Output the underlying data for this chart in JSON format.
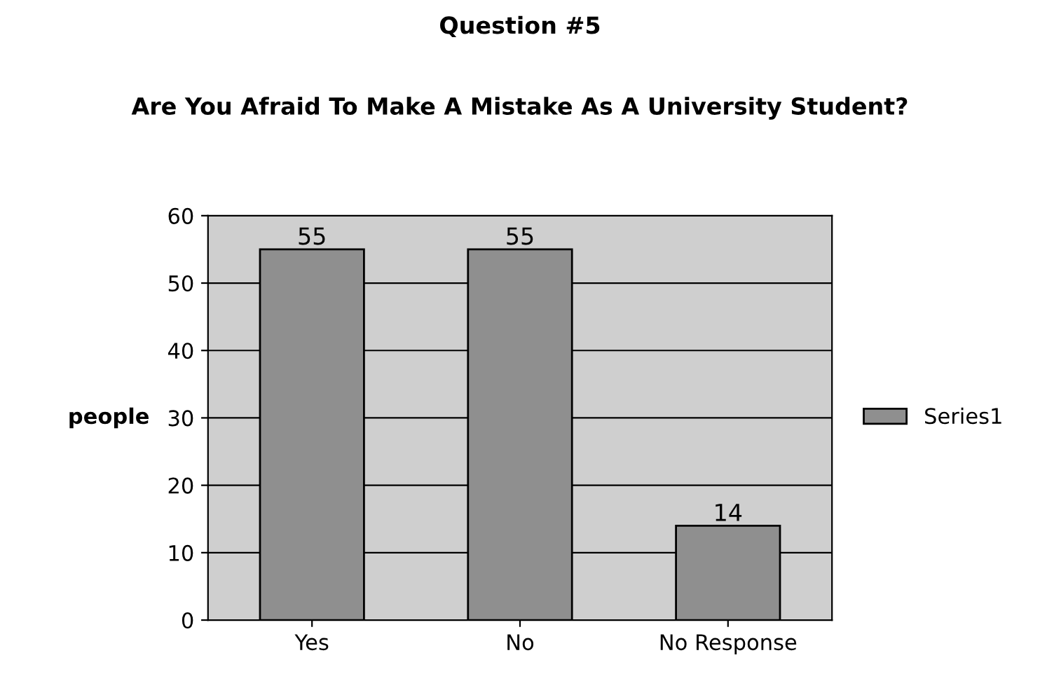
{
  "chart_data": {
    "type": "bar",
    "title": "Question #5",
    "subtitle": "Are You Afraid To Make A Mistake As A University Student?",
    "ylabel": "people",
    "categories": [
      "Yes",
      "No",
      "No Response"
    ],
    "series": [
      {
        "name": "Series1",
        "color": "#8f8f8f",
        "values": [
          55,
          55,
          14
        ]
      }
    ],
    "ylim": [
      0,
      60
    ],
    "yticks": [
      0,
      10,
      20,
      30,
      40,
      50,
      60
    ],
    "grid": "y",
    "legend": "right",
    "data_labels": true
  }
}
